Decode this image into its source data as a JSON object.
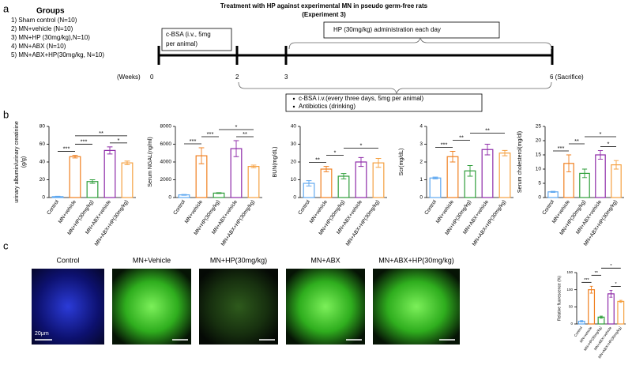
{
  "panel_labels": [
    "a",
    "b",
    "c"
  ],
  "experiment": {
    "title": "Treatment with HP against experimental MN in pseudo germ-free rats",
    "subtitle": "(Experiment 3)",
    "groups_heading": "Groups",
    "groups": [
      "1) Sham control (N=10)",
      "2) MN+vehicle (N=10)",
      "3) MN+HP (30mg/kg),N=10)",
      "4) MN+ABX (N=10)",
      "5) MN+ABX+HP(30mg/kg, N=10)"
    ],
    "timeline_unit": "(Weeks)",
    "timeline_ticks": [
      "0",
      "2",
      "3",
      "6 (Sacrifice)"
    ],
    "cbsa_box": [
      "c-BSA (i.v., 5mg",
      "per animal)"
    ],
    "hp_box": "HP (30mg/kg) administration each day",
    "notes": [
      "c-BSA i.v.(every three days, 5mg per animal)",
      "Antibiotics (drinking)"
    ]
  },
  "images": {
    "labels": [
      "Control",
      "MN+Vehicle",
      "MN+HP(30mg/kg)",
      "MN+ABX",
      "MN+ABX+HP(30mg/kg)"
    ],
    "scale_bar": "20μm"
  },
  "chart_data": [
    {
      "type": "bar",
      "ylabel": [
        "urinary albumin/urinary creatinine",
        "(g/g)"
      ],
      "categories": [
        "Control",
        "MN+vehicle",
        "MN+HP(30mg/kg)",
        "MN+ABX+vehicle",
        "MN+ABX+HP(30mg/kg)"
      ],
      "values": [
        1,
        46,
        18,
        53,
        39
      ],
      "errors": [
        0.5,
        1.5,
        2,
        4,
        2
      ],
      "colors": [
        "#5fa8f0",
        "#f07f1e",
        "#2e9e3a",
        "#8e2aa8",
        "#f5a040"
      ],
      "ylim": [
        0,
        80
      ],
      "yticks": [
        0,
        20,
        40,
        60,
        80
      ],
      "annotations": [
        {
          "from": 0,
          "to": 1,
          "label": "***"
        },
        {
          "from": 1,
          "to": 2,
          "label": "***"
        },
        {
          "from": 3,
          "to": 4,
          "label": "*"
        },
        {
          "from": 1,
          "to": 4,
          "label": "**"
        }
      ]
    },
    {
      "type": "bar",
      "ylabel": "Serum NGAL(ng/ml)",
      "categories": [
        "Control",
        "MN+vehicle",
        "MN+HP(30mg/kg)",
        "MN+ABX+vehicle",
        "MN+ABX+HP(30mg/kg)"
      ],
      "values": [
        300,
        4700,
        500,
        5500,
        3500
      ],
      "errors": [
        50,
        900,
        50,
        900,
        150
      ],
      "colors": [
        "#5fa8f0",
        "#f07f1e",
        "#2e9e3a",
        "#8e2aa8",
        "#f5a040"
      ],
      "ylim": [
        0,
        8000
      ],
      "yticks": [
        0,
        2000,
        4000,
        6000,
        8000
      ],
      "annotations": [
        {
          "from": 0,
          "to": 1,
          "label": "***"
        },
        {
          "from": 1,
          "to": 2,
          "label": "***"
        },
        {
          "from": 3,
          "to": 4,
          "label": "**"
        },
        {
          "from": 2,
          "to": 4,
          "label": "*"
        }
      ]
    },
    {
      "type": "bar",
      "ylabel": "BUN(mg/dL)",
      "categories": [
        "Control",
        "MN+vehicle",
        "MN+HP(30mg/kg)",
        "MN+ABX+vehicle",
        "MN+ABX+HP(30mg/kg)"
      ],
      "values": [
        8,
        16,
        12,
        20,
        19.5
      ],
      "errors": [
        1.5,
        1.5,
        1.5,
        2.5,
        2.5
      ],
      "colors": [
        "#5fa8f0",
        "#f07f1e",
        "#2e9e3a",
        "#8e2aa8",
        "#f5a040"
      ],
      "ylim": [
        0,
        40
      ],
      "yticks": [
        0,
        10,
        20,
        30,
        40
      ],
      "annotations": [
        {
          "from": 0,
          "to": 1,
          "label": "**"
        },
        {
          "from": 1,
          "to": 2,
          "label": "*"
        },
        {
          "from": 2,
          "to": 4,
          "label": "*"
        }
      ]
    },
    {
      "type": "bar",
      "ylabel": "Scr(mg/dL)",
      "categories": [
        "Control",
        "MN+vehicle",
        "MN+HP(30mg/kg)",
        "MN+ABX+vehicle",
        "MN+ABX+HP(30mg/kg)"
      ],
      "values": [
        1.1,
        2.3,
        1.5,
        2.7,
        2.5
      ],
      "errors": [
        0.05,
        0.3,
        0.3,
        0.3,
        0.15
      ],
      "colors": [
        "#5fa8f0",
        "#f07f1e",
        "#2e9e3a",
        "#8e2aa8",
        "#f5a040"
      ],
      "ylim": [
        0,
        4
      ],
      "yticks": [
        0,
        1,
        2,
        3,
        4
      ],
      "annotations": [
        {
          "from": 0,
          "to": 1,
          "label": "***"
        },
        {
          "from": 1,
          "to": 2,
          "label": "**"
        },
        {
          "from": 2,
          "to": 4,
          "label": "**"
        }
      ]
    },
    {
      "type": "bar",
      "ylabel": "Serum cholesterol(mg/dl)",
      "categories": [
        "Control",
        "MN+vehicle",
        "MN+HP(30mg/kg)",
        "MN+ABX+vehicle",
        "MN+ABX+HP(30mg/kg)"
      ],
      "values": [
        2,
        12,
        8.5,
        15,
        11.5
      ],
      "errors": [
        0.2,
        3,
        1.5,
        1.5,
        1.5
      ],
      "colors": [
        "#5fa8f0",
        "#f07f1e",
        "#2e9e3a",
        "#8e2aa8",
        "#f5a040"
      ],
      "ylim": [
        0,
        25
      ],
      "yticks": [
        0,
        5,
        10,
        15,
        20,
        25
      ],
      "annotations": [
        {
          "from": 0,
          "to": 1,
          "label": "***"
        },
        {
          "from": 1,
          "to": 2,
          "label": "**"
        },
        {
          "from": 3,
          "to": 4,
          "label": "*"
        },
        {
          "from": 2,
          "to": 4,
          "label": "*"
        }
      ]
    },
    {
      "type": "bar",
      "ylabel": "Relative fluorescence (%)",
      "categories": [
        "Control",
        "MN+vehicle",
        "MN+HP(30mg/kg)",
        "MN+ABX+vehicle",
        "MN+ABX+HP(30mg/kg)"
      ],
      "values": [
        8,
        100,
        20,
        88,
        66
      ],
      "errors": [
        2,
        10,
        3,
        10,
        3
      ],
      "colors": [
        "#5fa8f0",
        "#f07f1e",
        "#2e9e3a",
        "#8e2aa8",
        "#f5a040"
      ],
      "ylim": [
        0,
        150
      ],
      "yticks": [
        0,
        50,
        100,
        150
      ],
      "annotations": [
        {
          "from": 0,
          "to": 1,
          "label": "***"
        },
        {
          "from": 1,
          "to": 2,
          "label": "**"
        },
        {
          "from": 3,
          "to": 4,
          "label": "*"
        },
        {
          "from": 2,
          "to": 4,
          "label": "*"
        }
      ]
    }
  ]
}
